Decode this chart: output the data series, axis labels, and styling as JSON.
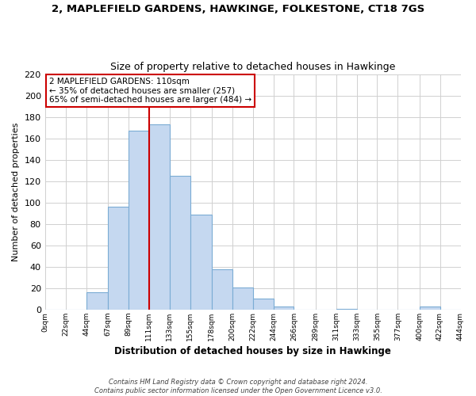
{
  "title": "2, MAPLEFIELD GARDENS, HAWKINGE, FOLKESTONE, CT18 7GS",
  "subtitle": "Size of property relative to detached houses in Hawkinge",
  "xlabel": "Distribution of detached houses by size in Hawkinge",
  "ylabel": "Number of detached properties",
  "bar_edges": [
    0,
    22,
    44,
    67,
    89,
    111,
    133,
    155,
    178,
    200,
    222,
    244,
    266,
    289,
    311,
    333,
    355,
    377,
    400,
    422,
    444
  ],
  "bar_heights": [
    0,
    0,
    16,
    96,
    167,
    173,
    125,
    89,
    38,
    21,
    10,
    3,
    0,
    0,
    1,
    0,
    0,
    0,
    3,
    0
  ],
  "bar_color": "#c5d8f0",
  "bar_edge_color": "#7bacd4",
  "tick_labels": [
    "0sqm",
    "22sqm",
    "44sqm",
    "67sqm",
    "89sqm",
    "111sqm",
    "133sqm",
    "155sqm",
    "178sqm",
    "200sqm",
    "222sqm",
    "244sqm",
    "266sqm",
    "289sqm",
    "311sqm",
    "333sqm",
    "355sqm",
    "377sqm",
    "400sqm",
    "422sqm",
    "444sqm"
  ],
  "ylim": [
    0,
    220
  ],
  "yticks": [
    0,
    20,
    40,
    60,
    80,
    100,
    120,
    140,
    160,
    180,
    200,
    220
  ],
  "vline_x": 111,
  "vline_color": "#cc0000",
  "annotation_title": "2 MAPLEFIELD GARDENS: 110sqm",
  "annotation_line1": "← 35% of detached houses are smaller (257)",
  "annotation_line2": "65% of semi-detached houses are larger (484) →",
  "annotation_box_color": "#ffffff",
  "annotation_box_edge_color": "#cc0000",
  "footer_line1": "Contains HM Land Registry data © Crown copyright and database right 2024.",
  "footer_line2": "Contains public sector information licensed under the Open Government Licence v3.0.",
  "background_color": "#ffffff",
  "grid_color": "#d0d0d0"
}
